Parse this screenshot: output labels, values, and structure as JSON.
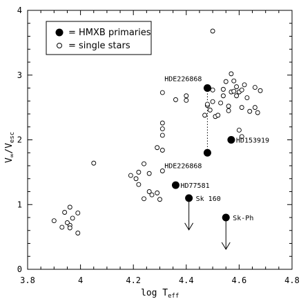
{
  "chart_data": {
    "type": "scatter",
    "xlabel_main": "log T",
    "xlabel_sub": "eff",
    "ylabel_main": "V",
    "ylabel_sub1": "∞",
    "ylabel_slash": "/V",
    "ylabel_sub2": "esc",
    "xlim": [
      3.8,
      4.8
    ],
    "ylim": [
      0,
      4
    ],
    "xticks": [
      3.8,
      4,
      4.2,
      4.4,
      4.6,
      4.8
    ],
    "xtick_labels": [
      "3.8",
      "4",
      "4.2",
      "4.4",
      "4.6",
      "4.8"
    ],
    "yticks": [
      0,
      1,
      2,
      3,
      4
    ],
    "ytick_labels": [
      "0",
      "1",
      "2",
      "3",
      "4"
    ],
    "legend": {
      "placement": "top-left",
      "entries": [
        {
          "marker": "filled-circle",
          "label": "= HMXB primaries"
        },
        {
          "marker": "open-circle",
          "label": "= single stars"
        }
      ]
    },
    "series": [
      {
        "name": "HMXB primaries",
        "marker": "filled",
        "points": [
          {
            "x": 4.48,
            "y": 2.8,
            "label": "HDE226868"
          },
          {
            "x": 4.48,
            "y": 1.8,
            "label": "HDE226868"
          },
          {
            "x": 4.57,
            "y": 2.0,
            "label": "HD153919"
          },
          {
            "x": 4.36,
            "y": 1.3,
            "label": "HD77581"
          },
          {
            "x": 4.41,
            "y": 1.1,
            "label": "Sk 160",
            "upper_limit": true
          },
          {
            "x": 4.55,
            "y": 0.8,
            "label": "Sk-Ph",
            "upper_limit": true
          }
        ]
      },
      {
        "name": "single stars",
        "marker": "open",
        "points": [
          [
            3.9,
            0.75
          ],
          [
            3.93,
            0.65
          ],
          [
            3.94,
            0.88
          ],
          [
            3.96,
            0.68
          ],
          [
            3.96,
            0.64
          ],
          [
            3.96,
            0.96
          ],
          [
            3.97,
            0.79
          ],
          [
            3.99,
            0.87
          ],
          [
            3.99,
            0.56
          ],
          [
            3.95,
            0.72
          ],
          [
            4.05,
            1.64
          ],
          [
            4.19,
            1.45
          ],
          [
            4.21,
            1.4
          ],
          [
            4.22,
            1.5
          ],
          [
            4.22,
            1.31
          ],
          [
            4.24,
            1.63
          ],
          [
            4.24,
            1.09
          ],
          [
            4.26,
            1.48
          ],
          [
            4.26,
            1.2
          ],
          [
            4.27,
            1.15
          ],
          [
            4.29,
            1.18
          ],
          [
            4.29,
            1.88
          ],
          [
            4.3,
            1.08
          ],
          [
            4.31,
            1.52
          ],
          [
            4.31,
            1.84
          ],
          [
            4.31,
            2.07
          ],
          [
            4.31,
            2.17
          ],
          [
            4.31,
            2.26
          ],
          [
            4.31,
            2.73
          ],
          [
            4.36,
            2.62
          ],
          [
            4.4,
            2.61
          ],
          [
            4.4,
            2.68
          ],
          [
            4.47,
            2.38
          ],
          [
            4.48,
            2.53
          ],
          [
            4.48,
            2.55
          ],
          [
            4.49,
            2.46
          ],
          [
            4.5,
            2.59
          ],
          [
            4.5,
            2.77
          ],
          [
            4.5,
            3.68
          ],
          [
            4.51,
            2.36
          ],
          [
            4.52,
            2.38
          ],
          [
            4.53,
            2.57
          ],
          [
            4.54,
            2.78
          ],
          [
            4.54,
            2.68
          ],
          [
            4.55,
            2.9
          ],
          [
            4.56,
            2.45
          ],
          [
            4.56,
            2.52
          ],
          [
            4.57,
            2.74
          ],
          [
            4.57,
            3.02
          ],
          [
            4.58,
            2.75
          ],
          [
            4.58,
            2.91
          ],
          [
            4.59,
            2.68
          ],
          [
            4.59,
            2.82
          ],
          [
            4.6,
            2.74
          ],
          [
            4.6,
            2.15
          ],
          [
            4.61,
            2.5
          ],
          [
            4.61,
            2.77
          ],
          [
            4.62,
            2.85
          ],
          [
            4.63,
            2.65
          ],
          [
            4.64,
            2.44
          ],
          [
            4.66,
            2.81
          ],
          [
            4.66,
            2.5
          ],
          [
            4.67,
            2.42
          ],
          [
            4.68,
            2.76
          ],
          [
            4.61,
            2.05
          ]
        ]
      }
    ]
  }
}
